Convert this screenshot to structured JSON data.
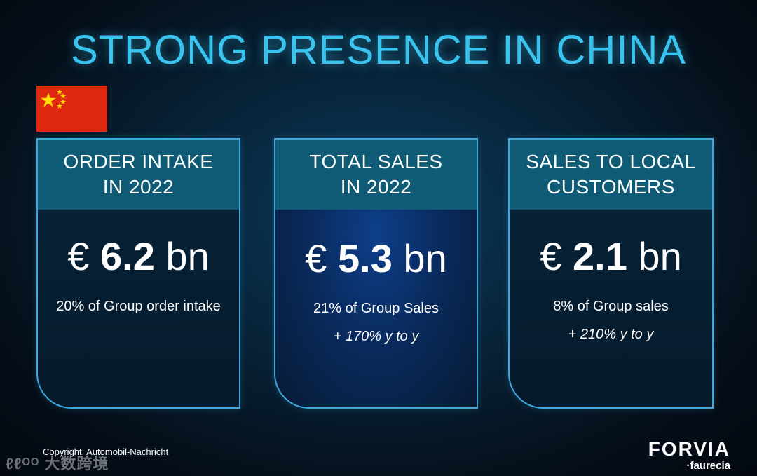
{
  "title": "STRONG PRESENCE IN CHINA",
  "flag": {
    "icon": "china-flag-icon",
    "colors": {
      "field": "#de2910",
      "stars": "#ffde00"
    }
  },
  "cards": [
    {
      "heading_line1": "ORDER INTAKE",
      "heading_line2": "IN 2022",
      "currency": "€",
      "value": "6.2",
      "unit": "bn",
      "subtext": "20% of Group order intake",
      "growth": ""
    },
    {
      "heading_line1": "TOTAL SALES",
      "heading_line2": "IN 2022",
      "currency": "€",
      "value": "5.3",
      "unit": "bn",
      "subtext": "21% of Group Sales",
      "growth": "+ 170% y to y"
    },
    {
      "heading_line1": "SALES TO LOCAL",
      "heading_line2": "CUSTOMERS",
      "currency": "€",
      "value": "2.1",
      "unit": "bn",
      "subtext": "8% of Group sales",
      "growth": "+ 210% y to y"
    }
  ],
  "footer": {
    "copyright": "Copyright: Automobil-Nachricht",
    "watermark": "ℓℓᴼᴼ 大数跨境",
    "brand": "FORVIA",
    "subbrand": "·faurecia"
  },
  "colors": {
    "accent": "#39c4ef",
    "card_border": "#3da8dc",
    "card_header": "#0f5a74"
  }
}
